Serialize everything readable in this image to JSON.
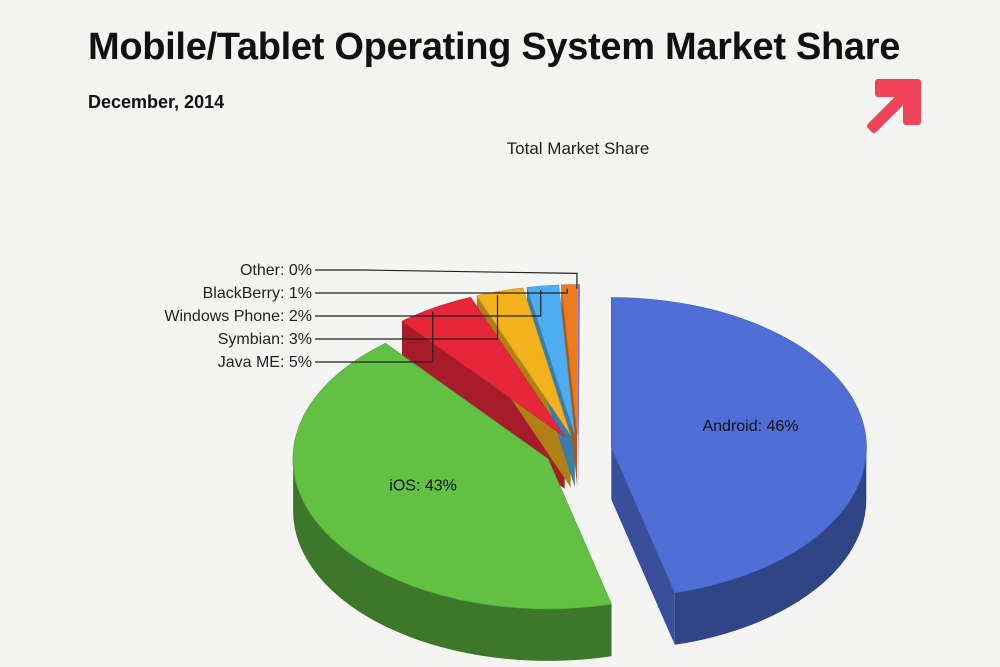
{
  "header": {
    "title": "Mobile/Tablet Operating System Market Share",
    "subtitle": "December, 2014"
  },
  "logo": {
    "icon": "arrow-up-right-icon",
    "color": "#f0435a"
  },
  "chart_data": {
    "type": "pie",
    "title": "Total Market Share",
    "series": [
      {
        "name": "Android",
        "value": 46,
        "label": "Android: 46%",
        "color": "#4f6ed6"
      },
      {
        "name": "iOS",
        "value": 43,
        "label": "iOS: 43%",
        "color": "#62c043"
      },
      {
        "name": "Java ME",
        "value": 5,
        "label": "Java ME: 5%",
        "color": "#e8263a"
      },
      {
        "name": "Symbian",
        "value": 3,
        "label": "Symbian: 3%",
        "color": "#f3b21c"
      },
      {
        "name": "Windows Phone",
        "value": 2,
        "label": "Windows Phone: 2%",
        "color": "#4dadf2"
      },
      {
        "name": "BlackBerry",
        "value": 1,
        "label": "BlackBerry: 1%",
        "color": "#ee7a1e"
      },
      {
        "name": "Other",
        "value": 0,
        "label": "Other: 0%",
        "color": "#8f79d9"
      }
    ],
    "legend": "none",
    "style": "3d-exploded"
  }
}
